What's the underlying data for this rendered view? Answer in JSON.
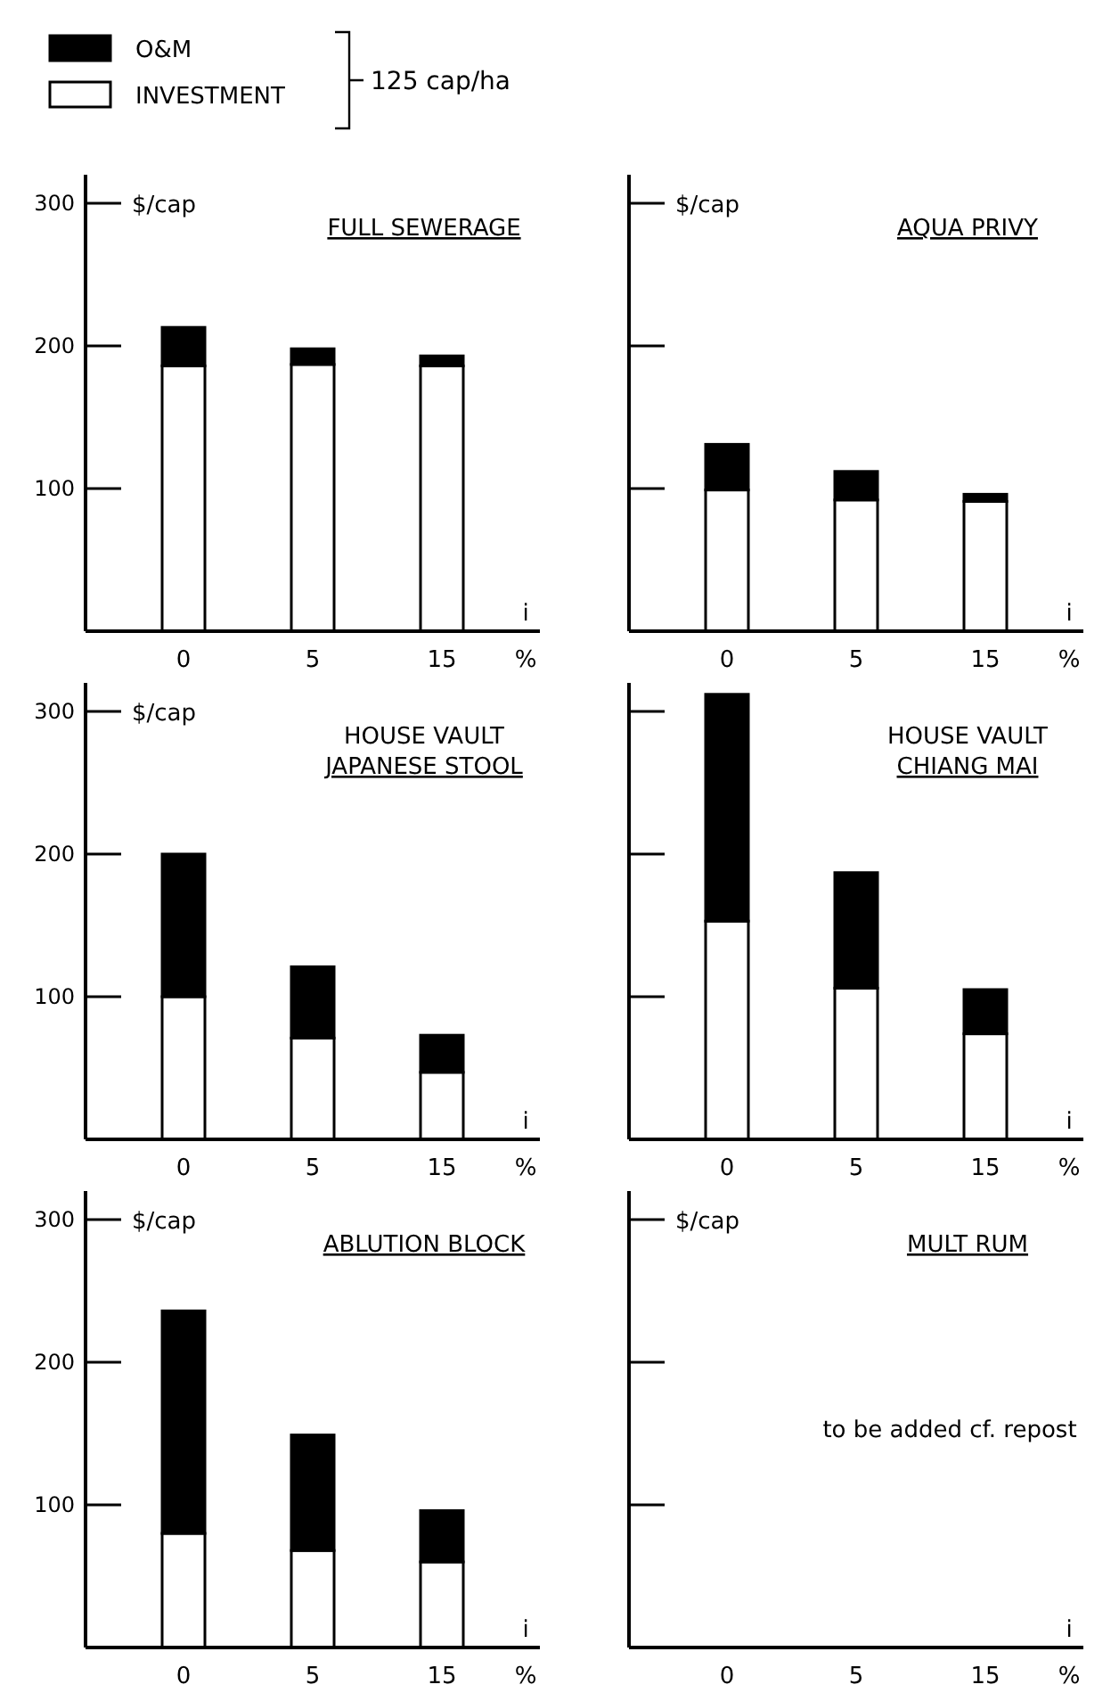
{
  "chart_data": [
    {
      "type": "bar",
      "stacked": true,
      "title": "FULL SEWERAGE",
      "ylabel": "$/cap",
      "xlabel": "%",
      "annotations": [
        "i"
      ],
      "legend": "top left",
      "legend_title": "125 cap/ha",
      "categories": [
        "0",
        "5",
        "15"
      ],
      "ylim": [
        0,
        320
      ],
      "yticks": [
        100,
        200,
        300
      ],
      "series": [
        {
          "name": "INVESTMENT",
          "color": "#ffffff",
          "values": [
            186,
            187,
            186
          ]
        },
        {
          "name": "O&M",
          "color": "#000000",
          "values": [
            27,
            11,
            7
          ]
        }
      ]
    },
    {
      "type": "bar",
      "stacked": true,
      "title": "AQUA PRIVY",
      "ylabel": "$/cap",
      "xlabel": "%",
      "annotations": [
        "i"
      ],
      "tick_labels": "x",
      "categories": [
        "0",
        "5",
        "15"
      ],
      "ylim": [
        0,
        320
      ],
      "yticks": [
        100,
        200,
        300
      ],
      "series": [
        {
          "color": "#ffffff",
          "values": [
            99,
            92,
            91
          ]
        },
        {
          "color": "#000000",
          "values": [
            32,
            20,
            5
          ]
        }
      ]
    },
    {
      "type": "bar",
      "stacked": true,
      "title": "HOUSE VAULT\nJAPANESE STOOL",
      "ylabel": "$/cap",
      "xlabel": "%",
      "annotations": [
        "i"
      ],
      "categories": [
        "0",
        "5",
        "15"
      ],
      "ylim": [
        0,
        320
      ],
      "yticks": [
        100,
        200,
        300
      ],
      "series": [
        {
          "color": "#ffffff",
          "values": [
            100,
            71,
            47
          ]
        },
        {
          "color": "#000000",
          "values": [
            100,
            50,
            26
          ]
        }
      ]
    },
    {
      "type": "bar",
      "stacked": true,
      "title": "HOUSE VAULT\nCHIANG MAI",
      "xlabel": "%",
      "annotations": [
        "i"
      ],
      "tick_labels": "x",
      "categories": [
        "0",
        "5",
        "15"
      ],
      "ylim": [
        0,
        320
      ],
      "yticks": [
        100,
        200,
        300
      ],
      "series": [
        {
          "color": "#ffffff",
          "values": [
            153,
            106,
            74
          ]
        },
        {
          "color": "#000000",
          "values": [
            159,
            81,
            31
          ]
        }
      ]
    },
    {
      "type": "bar",
      "stacked": true,
      "title": "ABLUTION BLOCK",
      "ylabel": "$/cap",
      "xlabel": "%",
      "annotations": [
        "i"
      ],
      "categories": [
        "0",
        "5",
        "15"
      ],
      "ylim": [
        0,
        320
      ],
      "yticks": [
        100,
        200,
        300
      ],
      "series": [
        {
          "color": "#ffffff",
          "values": [
            80,
            68,
            60
          ]
        },
        {
          "color": "#000000",
          "values": [
            156,
            81,
            36
          ]
        }
      ]
    },
    {
      "type": "bar",
      "title": "MULT RUM",
      "ylabel": "$/cap",
      "xlabel": "%",
      "annotations": [
        "i",
        "to be added cf. repost"
      ],
      "tick_labels": "x",
      "categories": [
        "0",
        "5",
        "15"
      ],
      "ylim": [
        0,
        320
      ],
      "yticks": [
        100,
        200,
        300
      ]
    }
  ]
}
